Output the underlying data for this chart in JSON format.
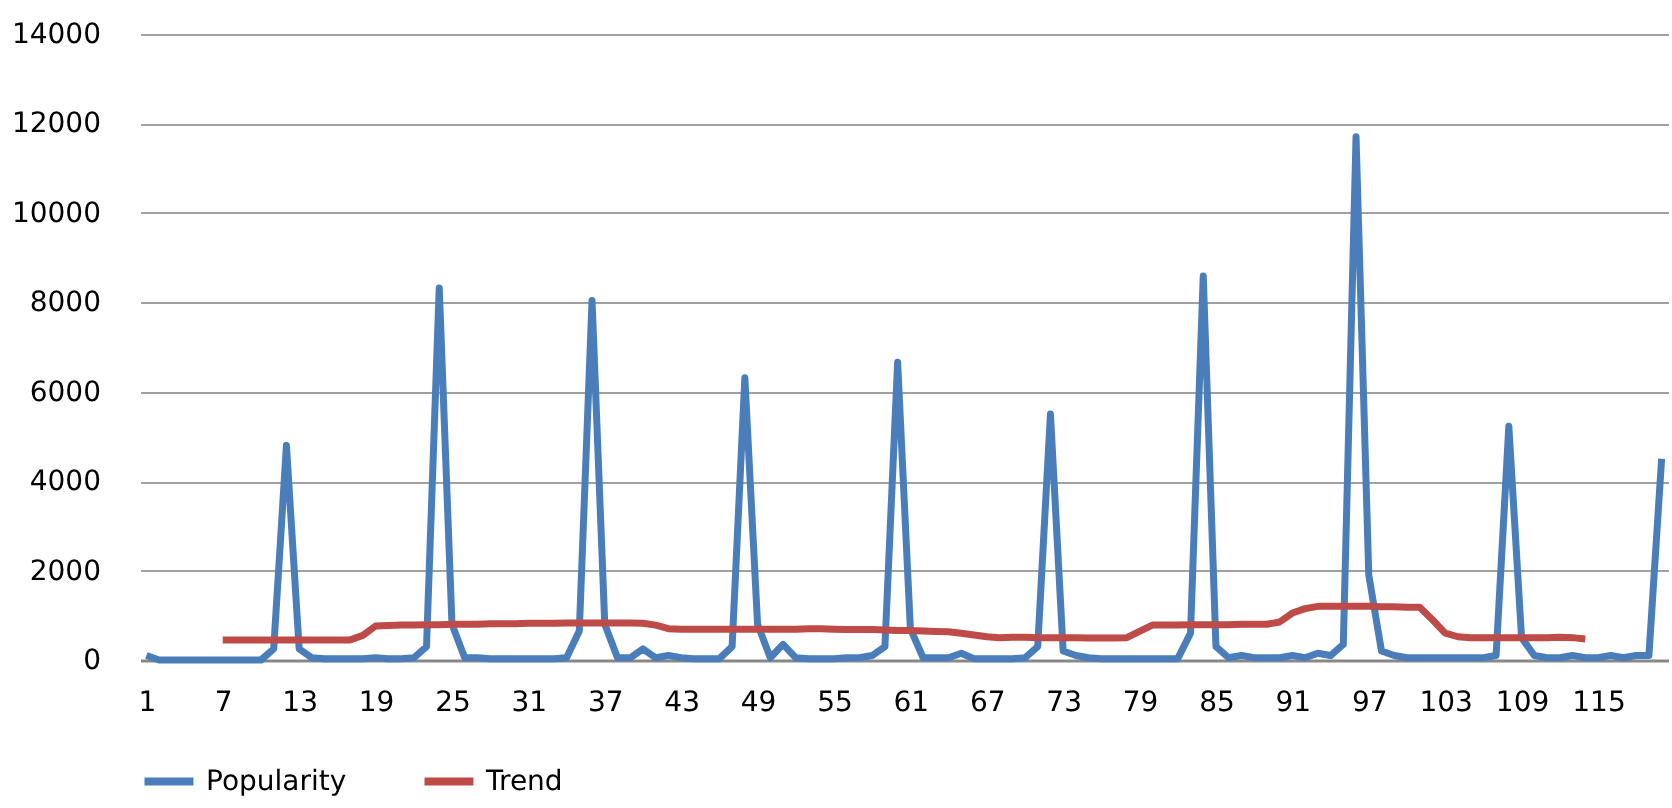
{
  "chart_data": {
    "type": "line",
    "x": [
      1,
      2,
      3,
      4,
      5,
      6,
      7,
      8,
      9,
      10,
      11,
      12,
      13,
      14,
      15,
      16,
      17,
      18,
      19,
      20,
      21,
      22,
      23,
      24,
      25,
      26,
      27,
      28,
      29,
      30,
      31,
      32,
      33,
      34,
      35,
      36,
      37,
      38,
      39,
      40,
      41,
      42,
      43,
      44,
      45,
      46,
      47,
      48,
      49,
      50,
      51,
      52,
      53,
      54,
      55,
      56,
      57,
      58,
      59,
      60,
      61,
      62,
      63,
      64,
      65,
      66,
      67,
      68,
      69,
      70,
      71,
      72,
      73,
      74,
      75,
      76,
      77,
      78,
      79,
      80,
      81,
      82,
      83,
      84,
      85,
      86,
      87,
      88,
      89,
      90,
      91,
      92,
      93,
      94,
      95,
      96,
      97,
      98,
      99,
      100,
      101,
      102,
      103,
      104,
      105,
      106,
      107,
      108,
      109,
      110,
      111,
      112,
      113,
      114,
      115,
      116,
      117,
      118,
      119,
      120
    ],
    "xlim": [
      0.5,
      120.5
    ],
    "xticks": [
      1,
      7,
      13,
      19,
      25,
      31,
      37,
      43,
      49,
      55,
      61,
      67,
      73,
      79,
      85,
      91,
      97,
      103,
      109,
      115
    ],
    "ylim": [
      0,
      14000
    ],
    "yticks": [
      0,
      2000,
      4000,
      6000,
      8000,
      10000,
      12000,
      14000
    ],
    "grid": "y",
    "legend": "bottom",
    "line_style": "solid",
    "marker": "none",
    "series": [
      {
        "name": "Popularity",
        "color": "#4a7ebb",
        "values": [
          100,
          0,
          0,
          0,
          0,
          0,
          0,
          0,
          0,
          0,
          250,
          4800,
          250,
          50,
          30,
          30,
          30,
          30,
          50,
          30,
          30,
          50,
          300,
          8320,
          800,
          50,
          50,
          30,
          30,
          30,
          30,
          30,
          30,
          50,
          650,
          8040,
          800,
          50,
          50,
          250,
          50,
          100,
          50,
          30,
          30,
          30,
          300,
          6310,
          800,
          50,
          350,
          50,
          30,
          30,
          30,
          50,
          50,
          100,
          300,
          6660,
          700,
          50,
          50,
          50,
          150,
          30,
          30,
          30,
          30,
          50,
          300,
          5500,
          200,
          100,
          50,
          30,
          30,
          30,
          30,
          30,
          30,
          30,
          600,
          8590,
          300,
          50,
          100,
          50,
          50,
          50,
          100,
          50,
          150,
          100,
          350,
          11700,
          1900,
          200,
          100,
          50,
          50,
          50,
          50,
          50,
          50,
          50,
          100,
          5230,
          500,
          100,
          50,
          50,
          100,
          50,
          50,
          100,
          50,
          100,
          100,
          4500
        ]
      },
      {
        "name": "Trend",
        "color": "#be4b48",
        "values": [
          null,
          null,
          null,
          null,
          null,
          null,
          450,
          450,
          450,
          450,
          450,
          450,
          450,
          450,
          450,
          450,
          450,
          550,
          760,
          770,
          780,
          780,
          790,
          790,
          800,
          800,
          800,
          810,
          810,
          810,
          820,
          820,
          820,
          830,
          830,
          830,
          830,
          830,
          830,
          820,
          780,
          700,
          690,
          690,
          690,
          690,
          690,
          690,
          690,
          690,
          690,
          690,
          700,
          700,
          690,
          680,
          680,
          680,
          670,
          660,
          660,
          650,
          640,
          630,
          600,
          560,
          520,
          500,
          510,
          510,
          500,
          500,
          500,
          500,
          490,
          490,
          490,
          500,
          640,
          780,
          780,
          780,
          790,
          790,
          790,
          790,
          800,
          800,
          800,
          850,
          1050,
          1150,
          1200,
          1200,
          1200,
          1200,
          1200,
          1190,
          1190,
          1180,
          1180,
          900,
          600,
          520,
          500,
          500,
          500,
          500,
          500,
          500,
          500,
          510,
          500,
          470,
          null,
          null,
          null,
          null,
          null,
          null
        ]
      }
    ]
  }
}
